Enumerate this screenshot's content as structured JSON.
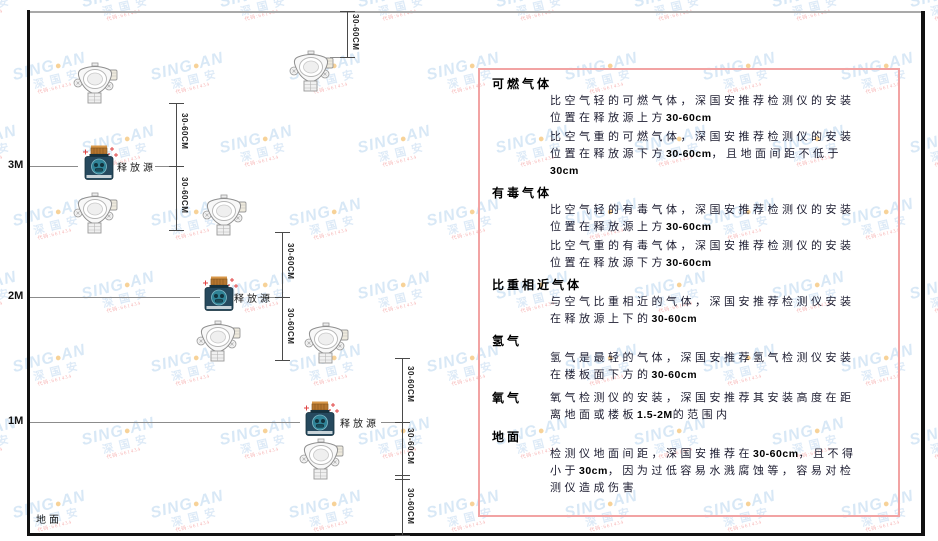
{
  "room": {
    "ground_label": "地面",
    "levels": [
      "3M",
      "2M",
      "1M"
    ]
  },
  "labels": {
    "release_source": "释放源",
    "dim": "30-60CM"
  },
  "watermark": {
    "brand_left": "SING",
    "dot": "●",
    "brand_right": "AN",
    "cn": "深国安",
    "code": "代码:661434"
  },
  "colors": {
    "panel_border": "#f2a3a3",
    "source_body": "#26495e",
    "source_cap": "#b5752f",
    "badge_teal": "#2f8296",
    "sparkle_red": "#e04343",
    "watermark_blue": "#b3d2ee",
    "watermark_dot_orange": "#f0a733",
    "detector_gray": "#8f8f8f"
  },
  "panel": {
    "sections": [
      {
        "heading": "可燃气体",
        "paras": [
          [
            {
              "t": "比空气轻的可燃气体，深国安推荐检测仪的安装位置在释放源上方"
            },
            {
              "t": "30-60cm",
              "b": true
            }
          ],
          [
            {
              "t": "比空气重的可燃气体，深国安推荐检测仪的安装位置在释放源下方"
            },
            {
              "t": "30-60cm",
              "b": true
            },
            {
              "t": "，且地面间距不低于"
            },
            {
              "t": "30cm",
              "b": true
            }
          ]
        ]
      },
      {
        "heading": "有毒气体",
        "paras": [
          [
            {
              "t": "比空气轻的有毒气体，深国安推荐检测仪的安装位置在释放源上方"
            },
            {
              "t": "30-60cm",
              "b": true
            }
          ],
          [
            {
              "t": "比空气重的有毒气体，深国安推荐检测仪的安装位置在释放源下方"
            },
            {
              "t": "30-60cm",
              "b": true
            }
          ]
        ]
      },
      {
        "heading": "比重相近气体",
        "paras": [
          [
            {
              "t": "与空气比重相近的气体，深国安推荐检测仪安装在释放源上下的"
            },
            {
              "t": "30-60cm",
              "b": true
            }
          ]
        ]
      },
      {
        "heading": "氢气",
        "paras": [
          [
            {
              "t": "氢气是最轻的气体，深国安推荐氢气检测仪安装在楼板面下方的"
            },
            {
              "t": "30-60cm",
              "b": true
            }
          ]
        ]
      },
      {
        "heading": "氧气",
        "inline": true,
        "paras": [
          [
            {
              "t": "氧气检测仪的安装，深国安推荐其安装高度在距离地面或楼板"
            },
            {
              "t": "1.5-2M",
              "b": true
            },
            {
              "t": "的范围内"
            }
          ]
        ]
      },
      {
        "heading": "地面",
        "paras": [
          [
            {
              "t": "检测仪地面间距，深国安推荐在"
            },
            {
              "t": "30-60cm",
              "b": true
            },
            {
              "t": "，且不得小于"
            },
            {
              "t": "30cm",
              "b": true
            },
            {
              "t": "，因为过低容易水溅腐蚀等，容易对检测仪造成伤害"
            }
          ]
        ]
      }
    ]
  }
}
